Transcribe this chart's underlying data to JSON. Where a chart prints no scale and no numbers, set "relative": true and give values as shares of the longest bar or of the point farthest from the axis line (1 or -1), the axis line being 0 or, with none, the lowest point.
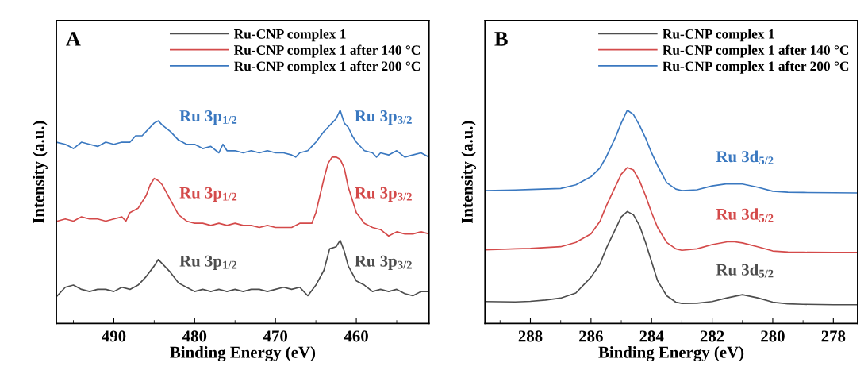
{
  "chart_data": [
    {
      "type": "line",
      "title": "A",
      "xlabel": "Binding Energy (eV)",
      "ylabel": "Intensity (a.u.)",
      "relative": true,
      "tick_labels": "x",
      "legend": "top right",
      "grid": false,
      "xlim": [
        497.1,
        451
      ],
      "xticks": [
        {
          "value": 495,
          "label": null
        },
        490,
        {
          "value": 485,
          "label": null
        },
        480,
        {
          "value": 475,
          "label": null
        },
        470,
        {
          "value": 465,
          "label": null
        },
        460,
        {
          "value": 455,
          "label": null
        }
      ],
      "series": [
        {
          "name": "Ru-CNP complex 1",
          "color": "#4d4d4d",
          "x": [
            497,
            496,
            495,
            494,
            493,
            492,
            491,
            490,
            489,
            488,
            487,
            486,
            485,
            484.5,
            484,
            483,
            482,
            481,
            480,
            479,
            478,
            477,
            476,
            475,
            474,
            473,
            472,
            471,
            470,
            469,
            468,
            467,
            466.5,
            466,
            465,
            464,
            463.3,
            462.5,
            462,
            461.5,
            461,
            460,
            459,
            458,
            457,
            456,
            455,
            454,
            453,
            452,
            451
          ],
          "values": [
            0.13,
            0.17,
            0.18,
            0.16,
            0.15,
            0.16,
            0.16,
            0.15,
            0.17,
            0.16,
            0.18,
            0.22,
            0.27,
            0.3,
            0.28,
            0.24,
            0.19,
            0.17,
            0.15,
            0.16,
            0.15,
            0.16,
            0.15,
            0.16,
            0.15,
            0.16,
            0.16,
            0.15,
            0.16,
            0.17,
            0.16,
            0.17,
            0.15,
            0.13,
            0.18,
            0.25,
            0.35,
            0.36,
            0.39,
            0.34,
            0.27,
            0.2,
            0.18,
            0.15,
            0.16,
            0.15,
            0.16,
            0.14,
            0.13,
            0.15,
            0.15
          ]
        },
        {
          "name": "Ru-CNP complex 1 after 140 °C",
          "color": "#d44a4a",
          "x": [
            497,
            496,
            495,
            494,
            493,
            492,
            491,
            490,
            489,
            488.5,
            488,
            487,
            486,
            485.5,
            485,
            484.5,
            484,
            483,
            482,
            481,
            480,
            479,
            478,
            477,
            476,
            475,
            474,
            473,
            472,
            471,
            470,
            469,
            468,
            467,
            466,
            465.5,
            465,
            464.5,
            464,
            463.5,
            463,
            462.5,
            462,
            461.5,
            461,
            460.5,
            460,
            459,
            458,
            457,
            456,
            455,
            454,
            453,
            452,
            451
          ],
          "values": [
            0.48,
            0.49,
            0.48,
            0.5,
            0.49,
            0.49,
            0.48,
            0.49,
            0.5,
            0.48,
            0.52,
            0.54,
            0.6,
            0.65,
            0.68,
            0.67,
            0.65,
            0.58,
            0.51,
            0.48,
            0.47,
            0.47,
            0.46,
            0.47,
            0.46,
            0.47,
            0.46,
            0.46,
            0.45,
            0.46,
            0.45,
            0.45,
            0.45,
            0.47,
            0.47,
            0.47,
            0.52,
            0.6,
            0.68,
            0.75,
            0.78,
            0.78,
            0.77,
            0.73,
            0.64,
            0.58,
            0.52,
            0.47,
            0.45,
            0.44,
            0.41,
            0.43,
            0.42,
            0.42,
            0.43,
            0.42
          ]
        },
        {
          "name": "Ru-CNP complex 1 after 200 °C",
          "color": "#3a78c0",
          "x": [
            497.1,
            496,
            495,
            494,
            493,
            492,
            491,
            490,
            489,
            488,
            487.3,
            486.5,
            486,
            485.5,
            485,
            484.5,
            484,
            483,
            482,
            481,
            480,
            479,
            478,
            477,
            476.5,
            476,
            475,
            474,
            473,
            472,
            471,
            470,
            469,
            468,
            467.5,
            467,
            466,
            465.5,
            465,
            464,
            463.5,
            463,
            462.5,
            462,
            461.5,
            461,
            460.5,
            460,
            459,
            458,
            457.5,
            457,
            456,
            455,
            454,
            453,
            452,
            451
          ],
          "values": [
            0.85,
            0.84,
            0.82,
            0.85,
            0.84,
            0.83,
            0.85,
            0.84,
            0.85,
            0.85,
            0.88,
            0.88,
            0.9,
            0.92,
            0.94,
            0.95,
            0.93,
            0.9,
            0.86,
            0.84,
            0.84,
            0.82,
            0.83,
            0.8,
            0.84,
            0.81,
            0.81,
            0.8,
            0.81,
            0.8,
            0.81,
            0.8,
            0.8,
            0.79,
            0.78,
            0.8,
            0.81,
            0.83,
            0.85,
            0.9,
            0.92,
            0.94,
            0.96,
            1.0,
            0.94,
            0.92,
            0.88,
            0.85,
            0.81,
            0.8,
            0.78,
            0.8,
            0.79,
            0.81,
            0.78,
            0.79,
            0.8,
            0.78
          ]
        }
      ],
      "annotations": [
        "Ru 3p$_{1/2}$",
        "Ru 3p$_{3/2}$",
        "Ru 3p$_{1/2}$",
        "Ru 3p$_{3/2}$",
        "Ru 3p$_{1/2}$",
        "Ru 3p$_{3/2}$"
      ]
    },
    {
      "type": "line",
      "title": "B",
      "xlabel": "Binding Energy (eV)",
      "ylabel": "Intensity (a.u.)",
      "relative": true,
      "tick_labels": "x",
      "legend": "top right",
      "grid": false,
      "xlim": [
        289.5,
        277.2
      ],
      "xticks": [
        {
          "value": 289,
          "label": null
        },
        288,
        {
          "value": 287,
          "label": null
        },
        286,
        {
          "value": 285,
          "label": null
        },
        284,
        {
          "value": 283,
          "label": null
        },
        282,
        {
          "value": 281,
          "label": null
        },
        280,
        {
          "value": 279,
          "label": null
        },
        278
      ],
      "series": [
        {
          "name": "Ru-CNP complex 1",
          "color": "#4d4d4d",
          "x": [
            289.5,
            288.5,
            288,
            287.5,
            287,
            286.5,
            286,
            285.7,
            285.5,
            285.2,
            285,
            284.8,
            284.6,
            284.4,
            284.2,
            284,
            283.8,
            283.5,
            283.2,
            283,
            282.5,
            282,
            281.5,
            281,
            280.5,
            280,
            279.5,
            279,
            278,
            277.2
          ],
          "values": [
            0.103,
            0.101,
            0.104,
            0.11,
            0.119,
            0.143,
            0.217,
            0.28,
            0.351,
            0.44,
            0.5,
            0.525,
            0.51,
            0.46,
            0.38,
            0.29,
            0.2,
            0.13,
            0.1,
            0.094,
            0.095,
            0.103,
            0.12,
            0.135,
            0.12,
            0.1,
            0.092,
            0.09,
            0.088,
            0.088
          ]
        },
        {
          "name": "Ru-CNP complex 1 after 140 °C",
          "color": "#d44a4a",
          "x": [
            289.5,
            288.5,
            288,
            287,
            286.5,
            286,
            285.7,
            285.5,
            285.2,
            285,
            284.8,
            284.6,
            284.4,
            284.2,
            284,
            283.8,
            283.5,
            283.2,
            283,
            282.5,
            282,
            281.5,
            281.3,
            281,
            280.5,
            280,
            279.5,
            279,
            278,
            277.2
          ],
          "values": [
            0.345,
            0.35,
            0.352,
            0.36,
            0.38,
            0.42,
            0.48,
            0.55,
            0.64,
            0.7,
            0.731,
            0.72,
            0.67,
            0.6,
            0.52,
            0.45,
            0.38,
            0.35,
            0.343,
            0.35,
            0.37,
            0.383,
            0.384,
            0.378,
            0.36,
            0.34,
            0.335,
            0.334,
            0.333,
            0.333
          ]
        },
        {
          "name": "Ru-CNP complex 1 after 200 °C",
          "color": "#3a78c0",
          "x": [
            289.5,
            288.5,
            288,
            287,
            286.5,
            286,
            285.7,
            285.5,
            285.2,
            285,
            284.8,
            284.6,
            284.4,
            284.2,
            284,
            283.8,
            283.5,
            283.2,
            283,
            282.5,
            282,
            281.5,
            281,
            280.5,
            280,
            279.5,
            279,
            278,
            277.2
          ],
          "values": [
            0.623,
            0.626,
            0.628,
            0.633,
            0.65,
            0.688,
            0.73,
            0.78,
            0.87,
            0.94,
            1.0,
            0.98,
            0.93,
            0.87,
            0.8,
            0.74,
            0.66,
            0.63,
            0.623,
            0.627,
            0.645,
            0.655,
            0.654,
            0.639,
            0.62,
            0.615,
            0.614,
            0.613,
            0.612
          ]
        }
      ],
      "annotations": [
        "Ru 3d$_{5/2}$",
        "Ru 3d$_{5/2}$",
        "Ru 3d$_{5/2}$"
      ]
    }
  ]
}
